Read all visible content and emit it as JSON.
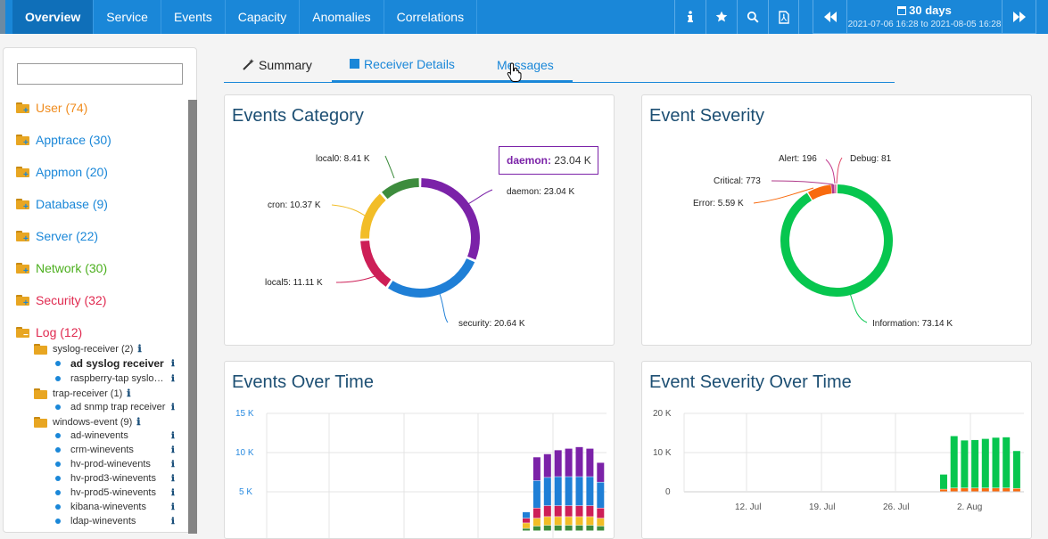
{
  "nav": {
    "items": [
      {
        "label": "Overview",
        "active": true
      },
      {
        "label": "Service"
      },
      {
        "label": "Events"
      },
      {
        "label": "Capacity"
      },
      {
        "label": "Anomalies"
      },
      {
        "label": "Correlations"
      }
    ]
  },
  "toolbar": {
    "icons": [
      "info-icon",
      "star-icon",
      "search-icon",
      "pdf-icon"
    ],
    "time_label": "30 days",
    "time_range": "2021-07-06 16:28 to 2021-08-05 16:28"
  },
  "sidebar": {
    "search_value": "",
    "categories": [
      {
        "label": "User (74)",
        "color": "#f08c1e"
      },
      {
        "label": "Apptrace (30)",
        "color": "#1a87d8"
      },
      {
        "label": "Appmon (20)",
        "color": "#1a87d8"
      },
      {
        "label": "Database (9)",
        "color": "#1a87d8"
      },
      {
        "label": "Server (22)",
        "color": "#1a87d8"
      },
      {
        "label": "Network (30)",
        "color": "#4caf1e"
      },
      {
        "label": "Security (32)",
        "color": "#e0294f"
      },
      {
        "label": "Log (12)",
        "color": "#e0294f"
      }
    ],
    "groups": [
      {
        "label": "syslog-receiver (2)",
        "info": "ℹ"
      },
      {
        "label": "trap-receiver (1)",
        "info": "ℹ"
      },
      {
        "label": "windows-event (9)",
        "info": "ℹ"
      }
    ],
    "leaves": [
      {
        "label": "ad syslog receiver",
        "info": "ℹ"
      },
      {
        "label": "raspberry-tap syslo…",
        "info": "ℹ"
      },
      {
        "label": "ad snmp trap receiver",
        "info": "ℹ"
      },
      {
        "label": "ad-winevents",
        "info": "ℹ"
      },
      {
        "label": "crm-winevents",
        "info": "ℹ"
      },
      {
        "label": "hv-prod-winevents",
        "info": "ℹ"
      },
      {
        "label": "hv-prod3-winevents",
        "info": "ℹ"
      },
      {
        "label": "hv-prod5-winevents",
        "info": "ℹ"
      },
      {
        "label": "kibana-winevents",
        "info": "ℹ"
      },
      {
        "label": "ldap-winevents",
        "info": "ℹ"
      }
    ]
  },
  "tabs": [
    {
      "label": "Summary",
      "active": false
    },
    {
      "label": "Receiver Details",
      "active": true
    },
    {
      "label": "Messages",
      "active": false
    }
  ],
  "panels": {
    "events_category": {
      "title": "Events Category",
      "tooltip_name": "daemon:",
      "tooltip_value": "23.04 K",
      "chart_data": {
        "type": "pie",
        "categories": [
          "daemon",
          "security",
          "local5",
          "cron",
          "local0"
        ],
        "values": [
          23.04,
          20.64,
          11.11,
          10.37,
          8.41
        ],
        "labels": [
          "daemon: 23.04 K",
          "security: 20.64 K",
          "local5: 11.11 K",
          "cron: 10.37 K",
          "local0: 8.41 K"
        ],
        "colors": [
          "#7b22a8",
          "#1f7fd6",
          "#cd1f57",
          "#f2bd27",
          "#3d8c3d"
        ]
      }
    },
    "event_severity": {
      "title": "Event Severity",
      "chart_data": {
        "type": "pie",
        "categories": [
          "Information",
          "Error",
          "Critical",
          "Alert",
          "Debug"
        ],
        "values": [
          73.14,
          5.59,
          0.773,
          0.196,
          0.081
        ],
        "labels": [
          "Information: 73.14 K",
          "Error: 5.59 K",
          "Critical: 773",
          "Alert: 196",
          "Debug: 81"
        ],
        "colors": [
          "#07c64f",
          "#f86a0e",
          "#b03a8a",
          "#c0398e",
          "#e04a6a"
        ]
      }
    },
    "events_over_time": {
      "title": "Events Over Time",
      "chart_data": {
        "type": "bar",
        "y_ticks": [
          "15 K",
          "10 K",
          "5 K"
        ],
        "ylim": [
          0,
          15
        ],
        "series": [
          {
            "name": "local0",
            "color": "#3d8c3d",
            "values": [
              0.3,
              0.6,
              0.7,
              0.7,
              0.7,
              0.7,
              0.7,
              0.6
            ]
          },
          {
            "name": "cron",
            "color": "#f2bd27",
            "values": [
              0.7,
              1.0,
              1.1,
              1.1,
              1.1,
              1.1,
              1.1,
              1.0
            ]
          },
          {
            "name": "local5",
            "color": "#cd1f57",
            "values": [
              0.6,
              1.3,
              1.4,
              1.4,
              1.4,
              1.4,
              1.4,
              1.3
            ]
          },
          {
            "name": "security",
            "color": "#1f7fd6",
            "values": [
              0.8,
              3.5,
              3.6,
              3.7,
              3.7,
              3.7,
              3.7,
              3.3
            ]
          },
          {
            "name": "daemon",
            "color": "#7b22a8",
            "values": [
              0.0,
              3.0,
              3.0,
              3.4,
              3.6,
              3.8,
              3.6,
              2.5
            ]
          }
        ]
      }
    },
    "event_severity_over_time": {
      "title": "Event Severity Over Time",
      "chart_data": {
        "type": "bar",
        "y_ticks": [
          "20 K",
          "10 K",
          "0"
        ],
        "x_ticks": [
          "12. Jul",
          "19. Jul",
          "26. Jul",
          "2. Aug"
        ],
        "ylim": [
          0,
          20
        ],
        "series": [
          {
            "name": "Error",
            "color": "#f86a0e",
            "values": [
              0.6,
              0.9,
              0.9,
              0.9,
              0.9,
              0.9,
              0.9,
              0.8
            ]
          },
          {
            "name": "Information",
            "color": "#07c64f",
            "values": [
              3.8,
              13.3,
              12.2,
              12.3,
              12.6,
              12.9,
              13.0,
              9.6
            ]
          }
        ]
      }
    }
  }
}
